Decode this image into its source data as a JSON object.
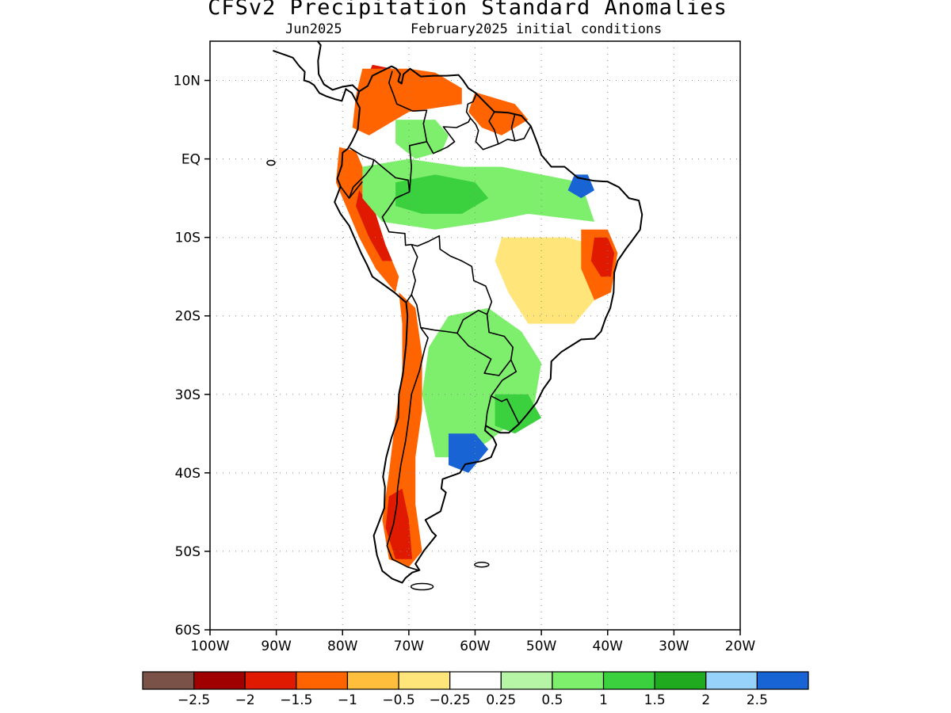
{
  "title": "CFSv2 Precipitation Standard Anomalies",
  "subtitle_left": "Jun2025",
  "subtitle_right": "February2025 initial conditions",
  "map": {
    "region": "South America",
    "lon_range": [
      -100,
      -20
    ],
    "lat_range": [
      -60,
      15
    ],
    "lat_ticks": [
      {
        "value": 10,
        "label": "10N"
      },
      {
        "value": 0,
        "label": "EQ"
      },
      {
        "value": -10,
        "label": "10S"
      },
      {
        "value": -20,
        "label": "20S"
      },
      {
        "value": -30,
        "label": "30S"
      },
      {
        "value": -40,
        "label": "40S"
      },
      {
        "value": -50,
        "label": "50S"
      },
      {
        "value": -60,
        "label": "60S"
      }
    ],
    "lon_ticks": [
      {
        "value": -100,
        "label": "100W"
      },
      {
        "value": -90,
        "label": "90W"
      },
      {
        "value": -80,
        "label": "80W"
      },
      {
        "value": -70,
        "label": "70W"
      },
      {
        "value": -60,
        "label": "60W"
      },
      {
        "value": -50,
        "label": "50W"
      },
      {
        "value": -40,
        "label": "40W"
      },
      {
        "value": -30,
        "label": "30W"
      },
      {
        "value": -20,
        "label": "20W"
      }
    ],
    "grid": "dotted"
  },
  "colorbar": {
    "colors": [
      "#7a5248",
      "#a00000",
      "#e01a00",
      "#ff6400",
      "#ffbf3c",
      "#ffe57a",
      "#ffffff",
      "#b6f5a5",
      "#7def6c",
      "#3ad03e",
      "#1faa1f",
      "#96d2fa",
      "#1864d4"
    ],
    "labels": [
      "−2.5",
      "−2",
      "−1.5",
      "−1",
      "−0.5",
      "−0.25",
      "0.25",
      "0.5",
      "1",
      "1.5",
      "2",
      "2.5"
    ]
  },
  "anomaly_regions": [
    {
      "name": "northern-colombia-dry",
      "category": -2,
      "color": "#e01a00",
      "points": [
        [
          -75.5,
          12
        ],
        [
          -72.5,
          11.5
        ],
        [
          -71,
          9
        ],
        [
          -72,
          6
        ],
        [
          -74.5,
          5
        ],
        [
          -76.5,
          6.5
        ],
        [
          -77,
          9
        ]
      ]
    },
    {
      "name": "colombia-venezuela-orange",
      "category": -1,
      "color": "#ff6400",
      "points": [
        [
          -77,
          11.5
        ],
        [
          -70,
          11.5
        ],
        [
          -66,
          11
        ],
        [
          -62,
          9
        ],
        [
          -62,
          7
        ],
        [
          -66,
          6.5
        ],
        [
          -70,
          6
        ],
        [
          -73,
          4.5
        ],
        [
          -76,
          3
        ],
        [
          -78.5,
          4
        ],
        [
          -78,
          8
        ]
      ]
    },
    {
      "name": "llanos-green",
      "category": 1,
      "color": "#7def6c",
      "points": [
        [
          -72,
          5
        ],
        [
          -66,
          5
        ],
        [
          -64,
          3
        ],
        [
          -65,
          1
        ],
        [
          -69,
          0
        ],
        [
          -72,
          2
        ]
      ]
    },
    {
      "name": "guianas-dry",
      "category": -1,
      "color": "#ff6400",
      "points": [
        [
          -60,
          8.5
        ],
        [
          -54,
          7
        ],
        [
          -52,
          5
        ],
        [
          -56,
          3
        ],
        [
          -59,
          4
        ],
        [
          -61,
          6
        ]
      ]
    },
    {
      "name": "ecuador-peru-coast-dry",
      "category": -1,
      "color": "#ff6400",
      "points": [
        [
          -80.5,
          1.5
        ],
        [
          -78,
          1
        ],
        [
          -76,
          -3
        ],
        [
          -75,
          -8
        ],
        [
          -73,
          -12
        ],
        [
          -71.5,
          -15
        ],
        [
          -72,
          -17
        ],
        [
          -75,
          -14
        ],
        [
          -77.5,
          -10
        ],
        [
          -79.5,
          -6
        ],
        [
          -81,
          -3
        ]
      ]
    },
    {
      "name": "peru-andes-red",
      "category": -2,
      "color": "#e01a00",
      "points": [
        [
          -77.5,
          -4
        ],
        [
          -75,
          -7
        ],
        [
          -73.5,
          -11
        ],
        [
          -72.5,
          -13
        ],
        [
          -74,
          -13
        ],
        [
          -76,
          -10
        ],
        [
          -78,
          -6
        ]
      ]
    },
    {
      "name": "western-amazon-green",
      "category": 1,
      "color": "#7def6c",
      "points": [
        [
          -77,
          -1
        ],
        [
          -70,
          0
        ],
        [
          -62,
          -1
        ],
        [
          -56,
          -1
        ],
        [
          -50,
          -2
        ],
        [
          -44,
          -3
        ],
        [
          -42,
          -8
        ],
        [
          -52,
          -7
        ],
        [
          -58,
          -8
        ],
        [
          -66,
          -9
        ],
        [
          -74,
          -8
        ],
        [
          -77,
          -5
        ]
      ]
    },
    {
      "name": "western-amazon-darkgreen",
      "category": 1.5,
      "color": "#3ad03e",
      "points": [
        [
          -72,
          -3
        ],
        [
          -66,
          -2
        ],
        [
          -60,
          -3
        ],
        [
          -58,
          -5
        ],
        [
          -62,
          -7
        ],
        [
          -68,
          -7
        ],
        [
          -72,
          -6
        ]
      ]
    },
    {
      "name": "maranhao-blue",
      "category": 2.5,
      "color": "#1864d4",
      "points": [
        [
          -45,
          -2
        ],
        [
          -43,
          -2
        ],
        [
          -42,
          -4
        ],
        [
          -44,
          -5
        ],
        [
          -46,
          -4
        ]
      ]
    },
    {
      "name": "central-brazil-yellow",
      "category": -0.25,
      "color": "#ffe57a",
      "points": [
        [
          -56,
          -10
        ],
        [
          -46,
          -10
        ],
        [
          -42,
          -11
        ],
        [
          -41,
          -17
        ],
        [
          -45,
          -21
        ],
        [
          -52,
          -21
        ],
        [
          -55,
          -17
        ],
        [
          -57,
          -13
        ]
      ]
    },
    {
      "name": "bahia-orange",
      "category": -1,
      "color": "#ff6400",
      "points": [
        [
          -44,
          -9
        ],
        [
          -40,
          -9
        ],
        [
          -38.5,
          -12
        ],
        [
          -39.5,
          -17
        ],
        [
          -42,
          -18
        ],
        [
          -44,
          -14
        ]
      ]
    },
    {
      "name": "bahia-red",
      "category": -2,
      "color": "#e01a00",
      "points": [
        [
          -42,
          -10
        ],
        [
          -40,
          -10
        ],
        [
          -39,
          -12
        ],
        [
          -39.5,
          -15
        ],
        [
          -41,
          -15
        ],
        [
          -42.5,
          -13
        ]
      ]
    },
    {
      "name": "bolivia-paraguay-green",
      "category": 1,
      "color": "#7def6c",
      "points": [
        [
          -64,
          -20
        ],
        [
          -58,
          -19
        ],
        [
          -53,
          -22
        ],
        [
          -50,
          -26
        ],
        [
          -51,
          -31
        ],
        [
          -55,
          -34
        ],
        [
          -58,
          -36
        ],
        [
          -62,
          -38
        ],
        [
          -66,
          -38
        ],
        [
          -68,
          -30
        ],
        [
          -67,
          -24
        ]
      ]
    },
    {
      "name": "uruguay-green",
      "category": 1.5,
      "color": "#3ad03e",
      "points": [
        [
          -57,
          -30
        ],
        [
          -52,
          -30
        ],
        [
          -50,
          -33
        ],
        [
          -54,
          -35
        ],
        [
          -57,
          -34
        ]
      ]
    },
    {
      "name": "pampas-blue",
      "category": 2.5,
      "color": "#1864d4",
      "points": [
        [
          -64,
          -35
        ],
        [
          -60,
          -35
        ],
        [
          -58,
          -37
        ],
        [
          -61,
          -40
        ],
        [
          -64,
          -39
        ]
      ]
    },
    {
      "name": "chile-andes-orange",
      "category": -1,
      "color": "#ff6400",
      "points": [
        [
          -71.5,
          -17
        ],
        [
          -69,
          -19
        ],
        [
          -68,
          -25
        ],
        [
          -68,
          -32
        ],
        [
          -69,
          -38
        ],
        [
          -69,
          -44
        ],
        [
          -68,
          -50
        ],
        [
          -70,
          -52
        ],
        [
          -73,
          -51
        ],
        [
          -74,
          -46
        ],
        [
          -73,
          -40
        ],
        [
          -72,
          -33
        ],
        [
          -71,
          -27
        ],
        [
          -71,
          -21
        ]
      ]
    },
    {
      "name": "patagonia-red",
      "category": -2,
      "color": "#e01a00",
      "points": [
        [
          -73,
          -43
        ],
        [
          -71,
          -42
        ],
        [
          -70,
          -46
        ],
        [
          -69.5,
          -51
        ],
        [
          -72,
          -51
        ],
        [
          -73.5,
          -47
        ]
      ]
    }
  ]
}
